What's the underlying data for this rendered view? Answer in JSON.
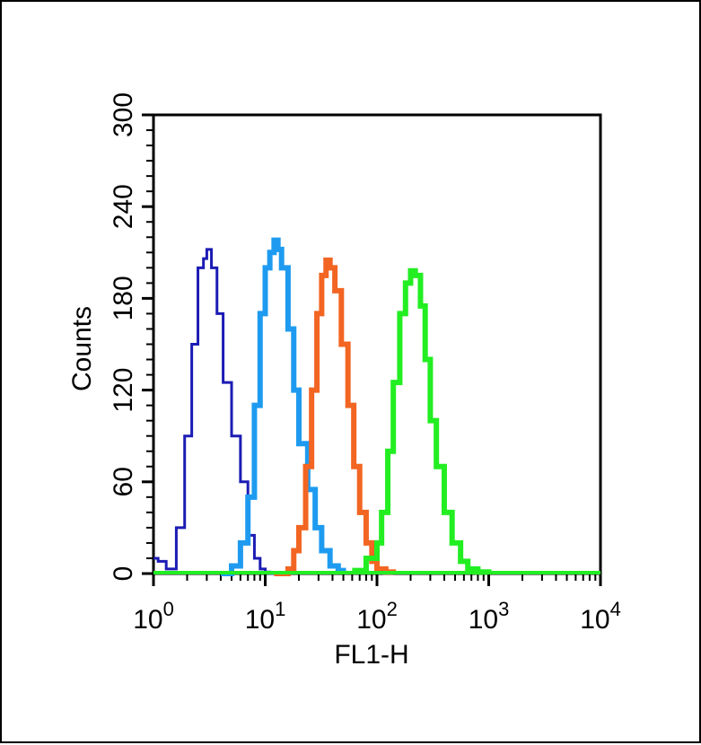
{
  "chart_data": {
    "type": "line",
    "title": "",
    "xlabel": "FL1-H",
    "ylabel": "Counts",
    "x_scale": "log",
    "xlim": [
      1,
      10000
    ],
    "ylim": [
      0,
      300
    ],
    "grid": false,
    "x_ticks": [
      {
        "base": "10",
        "exp": "0"
      },
      {
        "base": "10",
        "exp": "1"
      },
      {
        "base": "10",
        "exp": "2"
      },
      {
        "base": "10",
        "exp": "3"
      },
      {
        "base": "10",
        "exp": "4"
      }
    ],
    "y_ticks": [
      "0",
      "60",
      "120",
      "180",
      "240",
      "300"
    ],
    "series": [
      {
        "color": "#1c1cb4",
        "x": [
          1.0,
          1.1,
          1.3,
          1.6,
          1.9,
          2.2,
          2.5,
          2.8,
          3.0,
          3.3,
          3.7,
          4.2,
          5.0,
          6.0,
          7.0,
          8.0,
          9.0,
          10.0,
          11.0,
          12.0
        ],
        "values": [
          10,
          8,
          3,
          30,
          90,
          150,
          200,
          206,
          212,
          200,
          170,
          125,
          90,
          60,
          25,
          10,
          3,
          1,
          0,
          0
        ]
      },
      {
        "color": "#1e9bf0",
        "x": [
          4.0,
          5.0,
          6.0,
          7.0,
          8.0,
          9.0,
          10.0,
          11.0,
          12.0,
          13.0,
          14.0,
          16.0,
          18.0,
          20.0,
          24.0,
          28.0,
          32.0,
          38.0,
          45.0,
          50.0
        ],
        "values": [
          0,
          5,
          20,
          50,
          110,
          170,
          200,
          210,
          218,
          212,
          200,
          160,
          120,
          85,
          55,
          30,
          15,
          5,
          2,
          0
        ]
      },
      {
        "color": "#f26522",
        "x": [
          12.0,
          16.0,
          18.0,
          20.0,
          23.0,
          26.0,
          29.0,
          32.0,
          35.0,
          38.0,
          42.0,
          48.0,
          55.0,
          62.0,
          70.0,
          80.0,
          90.0,
          100.0,
          120.0,
          140.0
        ],
        "values": [
          0,
          3,
          15,
          30,
          70,
          120,
          170,
          195,
          205,
          200,
          185,
          150,
          110,
          70,
          40,
          20,
          8,
          3,
          1,
          0
        ]
      },
      {
        "color": "#22ee22",
        "x": [
          60.0,
          80.0,
          100.0,
          110.0,
          125.0,
          140.0,
          160.0,
          180.0,
          200.0,
          220.0,
          245.0,
          270.0,
          300.0,
          340.0,
          400.0,
          470.0,
          560.0,
          650.0,
          800.0,
          1000.0
        ],
        "values": [
          2,
          10,
          20,
          40,
          80,
          125,
          170,
          190,
          198,
          195,
          175,
          140,
          100,
          70,
          40,
          20,
          8,
          3,
          1,
          0
        ]
      }
    ]
  }
}
